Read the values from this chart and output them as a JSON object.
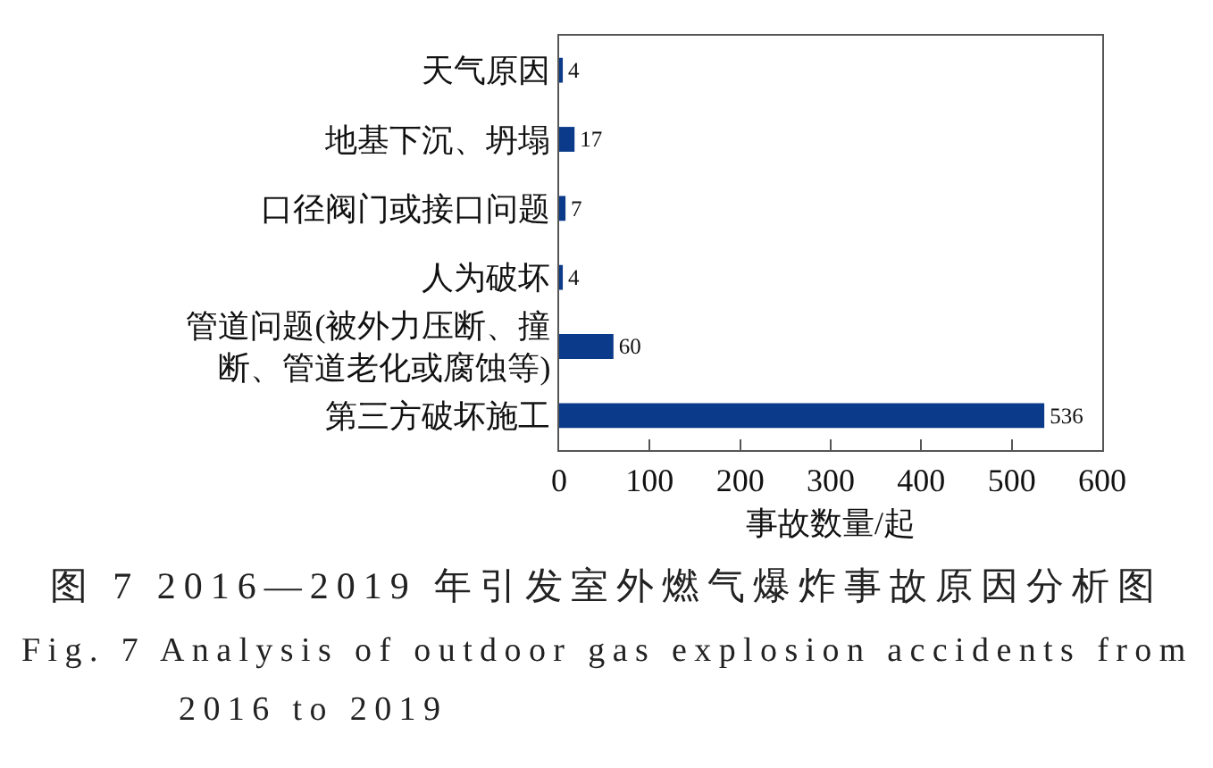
{
  "chart_data": {
    "type": "bar",
    "orientation": "horizontal",
    "categories": [
      "天气原因",
      "地基下沉、坍塌",
      "口径阀门或接口问题",
      "人为破坏",
      "管道问题(被外力压断、撞断、管道老化或腐蚀等)",
      "第三方破坏施工"
    ],
    "values": [
      4,
      17,
      7,
      4,
      60,
      536
    ],
    "color": "#0b3a8a",
    "data_labels": true,
    "xlabel": "事故数量/起",
    "xlim": [
      0,
      600
    ],
    "xticks": [
      0,
      100,
      200,
      300,
      400,
      500,
      600
    ],
    "annotations": [
      "图 7 2016—2019 年引发室外燃气爆炸事故原因分析图",
      "Fig. 7 Analysis of outdoor gas explosion accidents from 2016 to 2019"
    ]
  }
}
